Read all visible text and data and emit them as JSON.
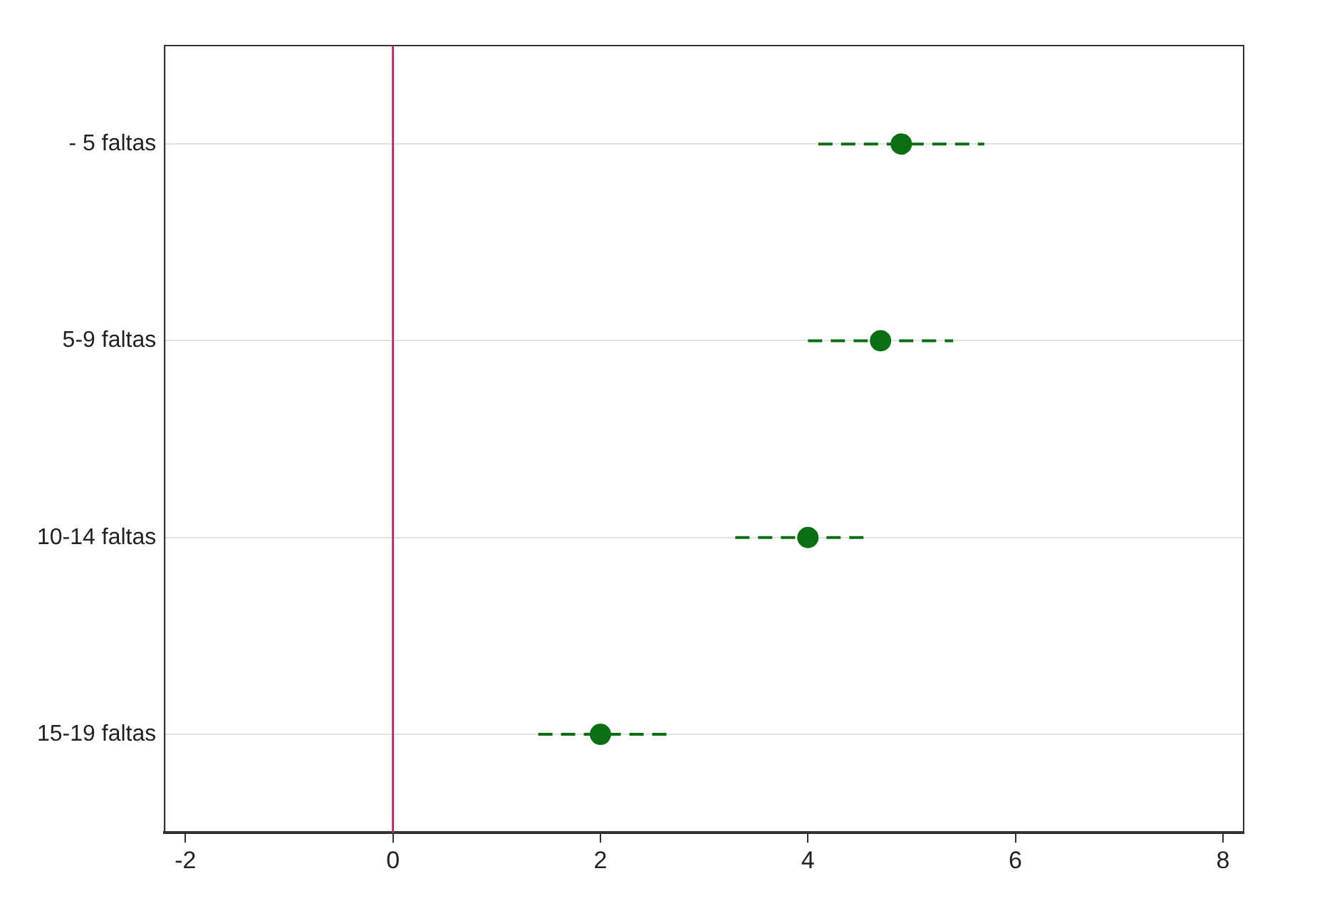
{
  "chart_data": {
    "type": "scatter",
    "orientation": "horizontal",
    "categories": [
      "- 5 faltas",
      "5-9 faltas",
      "10-14 faltas",
      "15-19 faltas"
    ],
    "values": [
      4.9,
      4.7,
      4.0,
      2.0
    ],
    "errors": [
      [
        4.1,
        5.7
      ],
      [
        4.0,
        5.4
      ],
      [
        3.3,
        4.6
      ],
      [
        1.4,
        2.7
      ]
    ],
    "color": "#0a6e14",
    "marker": "circle",
    "xlim": [
      -2.2,
      8.2
    ],
    "xticks": [
      -2,
      0,
      2,
      4,
      6,
      8
    ],
    "ref_lines": [
      {
        "axis": "x",
        "value": 0,
        "color": "#b0306a"
      }
    ],
    "grid": "y",
    "legend": false
  }
}
